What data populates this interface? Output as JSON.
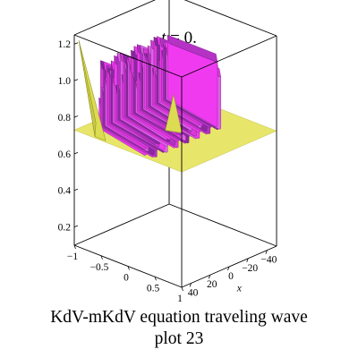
{
  "title": {
    "variable": "t",
    "rest": " = 0."
  },
  "caption": {
    "line1": "KdV-mKdV equation  traveling wave",
    "line2": "plot 23"
  },
  "chart_data": {
    "type": "surface3d",
    "title": "t = 0.",
    "caption": "KdV-mKdV equation  traveling wave plot 23",
    "xlabel": "x",
    "ylabel": "",
    "zlabel": "",
    "x_ticks": [
      "40",
      "20",
      "0",
      "−20",
      "−40"
    ],
    "y_ticks": [
      "−1",
      "−0.5",
      "0",
      "0.5",
      "1"
    ],
    "z_ticks": [
      "0.2",
      "0.4",
      "0.6",
      "0.8",
      "1.0",
      "1.2"
    ],
    "xlim": [
      -50,
      50
    ],
    "ylim": [
      -1,
      1
    ],
    "zlim": [
      0.1,
      1.25
    ],
    "box": true,
    "baseline_z": 0.73,
    "surface": {
      "flat_sheet_color": "#e8e66a",
      "spike_color": "#dcdc52",
      "oscillation_colors": [
        "#f03af0",
        "#d83ad8",
        "#b432c4",
        "#8a2aa0",
        "#e060e8"
      ],
      "oscillation_z_range": [
        0.6,
        1.05
      ],
      "spike_peak_z": 1.22
    }
  }
}
